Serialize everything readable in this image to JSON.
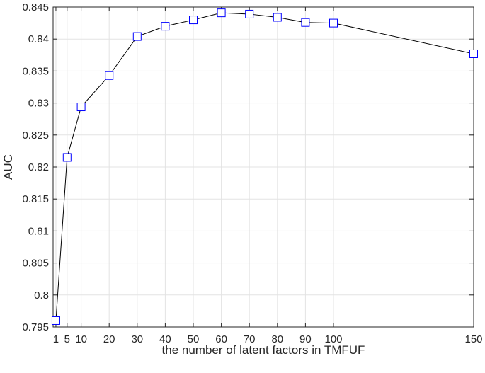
{
  "chart_data": {
    "type": "line",
    "title": "",
    "xlabel": "the number of latent factors in TMFUF",
    "ylabel": "AUC",
    "xlim": [
      0,
      150
    ],
    "ylim": [
      0.795,
      0.845
    ],
    "x_ticks": [
      1,
      5,
      10,
      20,
      30,
      40,
      50,
      60,
      70,
      80,
      90,
      100,
      150
    ],
    "y_ticks": [
      0.795,
      0.8,
      0.805,
      0.81,
      0.815,
      0.82,
      0.825,
      0.83,
      0.835,
      0.84,
      0.845
    ],
    "y_tick_labels": [
      "0.795",
      "0.8",
      "0.805",
      "0.81",
      "0.815",
      "0.82",
      "0.825",
      "0.83",
      "0.835",
      "0.84",
      "0.845"
    ],
    "grid": true,
    "legend": "none",
    "series": [
      {
        "x": [
          1,
          5,
          10,
          20,
          30,
          40,
          50,
          60,
          70,
          80,
          90,
          100,
          150
        ],
        "values": [
          0.796,
          0.8215,
          0.8294,
          0.8343,
          0.8404,
          0.842,
          0.843,
          0.8441,
          0.8439,
          0.8434,
          0.8426,
          0.8425,
          0.8377
        ],
        "line_color": "#000000",
        "marker": "square",
        "marker_color": "#0000ff"
      }
    ]
  }
}
